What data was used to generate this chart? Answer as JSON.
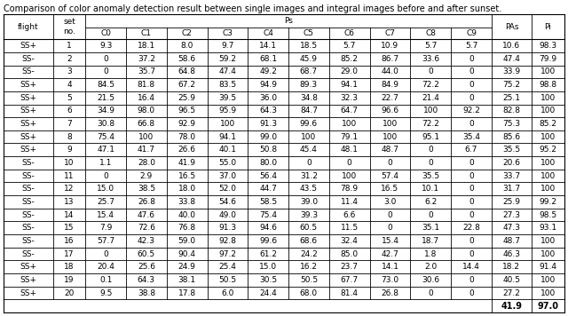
{
  "title": "Comparison of color anomaly detection result between single images and integral images before and after sunset.",
  "rows": [
    [
      "SS+",
      "1",
      "9.3",
      "18.1",
      "8.0",
      "9.7",
      "14.1",
      "18.5",
      "5.7",
      "10.9",
      "5.7",
      "5.7",
      "10.6",
      "98.3"
    ],
    [
      "SS-",
      "2",
      "0",
      "37.2",
      "58.6",
      "59.2",
      "68.1",
      "45.9",
      "85.2",
      "86.7",
      "33.6",
      "0",
      "47.4",
      "79.9"
    ],
    [
      "SS-",
      "3",
      "0",
      "35.7",
      "64.8",
      "47.4",
      "49.2",
      "68.7",
      "29.0",
      "44.0",
      "0",
      "0",
      "33.9",
      "100"
    ],
    [
      "SS+",
      "4",
      "84.5",
      "81.8",
      "67.2",
      "83.5",
      "94.9",
      "89.3",
      "94.1",
      "84.9",
      "72.2",
      "0",
      "75.2",
      "98.8"
    ],
    [
      "SS+",
      "5",
      "21.5",
      "16.4",
      "25.9",
      "39.5",
      "36.0",
      "34.8",
      "32.3",
      "22.7",
      "21.4",
      "0",
      "25.1",
      "100"
    ],
    [
      "SS+",
      "6",
      "34.9",
      "98.0",
      "96.5",
      "95.9",
      "64.3",
      "84.7",
      "64.7",
      "96.6",
      "100",
      "92.2",
      "82.8",
      "100"
    ],
    [
      "SS+",
      "7",
      "30.8",
      "66.8",
      "92.9",
      "100",
      "91.3",
      "99.6",
      "100",
      "100",
      "72.2",
      "0",
      "75.3",
      "85.2"
    ],
    [
      "SS+",
      "8",
      "75.4",
      "100",
      "78.0",
      "94.1",
      "99.0",
      "100",
      "79.1",
      "100",
      "95.1",
      "35.4",
      "85.6",
      "100"
    ],
    [
      "SS+",
      "9",
      "47.1",
      "41.7",
      "26.6",
      "40.1",
      "50.8",
      "45.4",
      "48.1",
      "48.7",
      "0",
      "6.7",
      "35.5",
      "95.2"
    ],
    [
      "SS-",
      "10",
      "1.1",
      "28.0",
      "41.9",
      "55.0",
      "80.0",
      "0",
      "0",
      "0",
      "0",
      "0",
      "20.6",
      "100"
    ],
    [
      "SS-",
      "11",
      "0",
      "2.9",
      "16.5",
      "37.0",
      "56.4",
      "31.2",
      "100",
      "57.4",
      "35.5",
      "0",
      "33.7",
      "100"
    ],
    [
      "SS-",
      "12",
      "15.0",
      "38.5",
      "18.0",
      "52.0",
      "44.7",
      "43.5",
      "78.9",
      "16.5",
      "10.1",
      "0",
      "31.7",
      "100"
    ],
    [
      "SS-",
      "13",
      "25.7",
      "26.8",
      "33.8",
      "54.6",
      "58.5",
      "39.0",
      "11.4",
      "3.0",
      "6.2",
      "0",
      "25.9",
      "99.2"
    ],
    [
      "SS-",
      "14",
      "15.4",
      "47.6",
      "40.0",
      "49.0",
      "75.4",
      "39.3",
      "6.6",
      "0",
      "0",
      "0",
      "27.3",
      "98.5"
    ],
    [
      "SS-",
      "15",
      "7.9",
      "72.6",
      "76.8",
      "91.3",
      "94.6",
      "60.5",
      "11.5",
      "0",
      "35.1",
      "22.8",
      "47.3",
      "93.1"
    ],
    [
      "SS-",
      "16",
      "57.7",
      "42.3",
      "59.0",
      "92.8",
      "99.6",
      "68.6",
      "32.4",
      "15.4",
      "18.7",
      "0",
      "48.7",
      "100"
    ],
    [
      "SS-",
      "17",
      "0",
      "60.5",
      "90.4",
      "97.2",
      "61.2",
      "24.2",
      "85.0",
      "42.7",
      "1.8",
      "0",
      "46.3",
      "100"
    ],
    [
      "SS+",
      "18",
      "20.4",
      "25.6",
      "24.9",
      "25.4",
      "15.0",
      "16.2",
      "23.7",
      "14.1",
      "2.0",
      "14.4",
      "18.2",
      "91.4"
    ],
    [
      "SS+",
      "19",
      "0.1",
      "64.3",
      "38.1",
      "50.5",
      "30.5",
      "50.5",
      "67.7",
      "73.0",
      "30.6",
      "0",
      "40.5",
      "100"
    ],
    [
      "SS+",
      "20",
      "9.5",
      "38.8",
      "17.8",
      "6.0",
      "24.4",
      "68.0",
      "81.4",
      "26.8",
      "0",
      "0",
      "27.2",
      "100"
    ]
  ],
  "summary_pas": "41.9",
  "summary_pi": "97.0",
  "bg_color": "#ffffff",
  "line_color": "#000000",
  "font_size": 6.5,
  "title_font_size": 7.0
}
